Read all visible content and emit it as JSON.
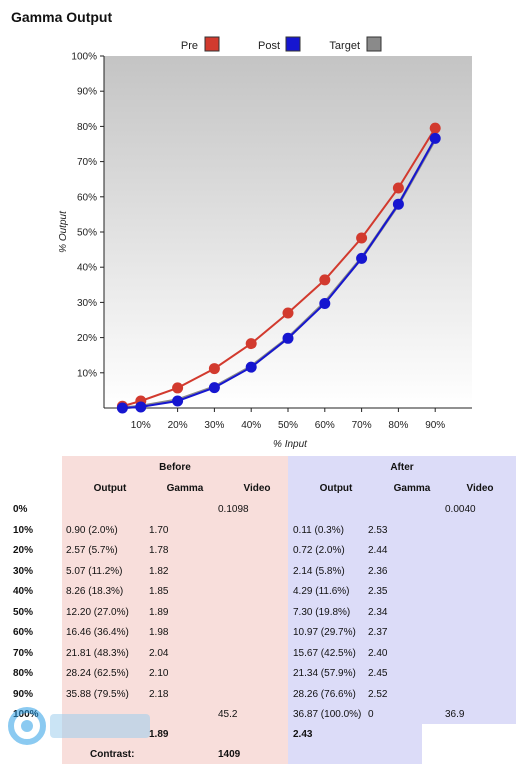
{
  "page": {
    "title": "Gamma Output"
  },
  "colors": {
    "pre": "#d23a2e",
    "post": "#1616d0",
    "target": "#8a8a8a",
    "before_bg": "#f8dedb",
    "after_bg": "#dcdcf8"
  },
  "chart_data": {
    "type": "line",
    "xlabel": "% Input",
    "ylabel": "% Output",
    "x_ticks": [
      "10%",
      "20%",
      "30%",
      "40%",
      "50%",
      "60%",
      "70%",
      "80%",
      "90%"
    ],
    "y_ticks": [
      "10%",
      "20%",
      "30%",
      "40%",
      "50%",
      "60%",
      "70%",
      "80%",
      "90%",
      "100%"
    ],
    "xlim": [
      0,
      100
    ],
    "ylim": [
      0,
      100
    ],
    "legend": [
      "Pre",
      "Post",
      "Target"
    ],
    "legend_position": "top",
    "series": [
      {
        "name": "Pre",
        "x": [
          5,
          10,
          20,
          30,
          40,
          50,
          60,
          70,
          80,
          90
        ],
        "y": [
          0.5,
          2.0,
          5.7,
          11.2,
          18.3,
          27.0,
          36.4,
          48.3,
          62.5,
          79.5
        ]
      },
      {
        "name": "Post",
        "x": [
          5,
          10,
          20,
          30,
          40,
          50,
          60,
          70,
          80,
          90
        ],
        "y": [
          0.0,
          0.3,
          2.0,
          5.8,
          11.6,
          19.8,
          29.7,
          42.5,
          57.9,
          76.6
        ]
      },
      {
        "name": "Target",
        "x": [
          5,
          10,
          20,
          30,
          40,
          50,
          60,
          70,
          80,
          90
        ],
        "y": [
          0.0,
          0.5,
          2.3,
          6.0,
          11.8,
          19.9,
          30.0,
          42.6,
          57.8,
          76.4
        ]
      }
    ]
  },
  "table": {
    "before_header": "Before",
    "after_header": "After",
    "col_headers": [
      "Output",
      "Gamma",
      "Video",
      "Output",
      "Gamma",
      "Video"
    ],
    "rows": [
      [
        "0%",
        "",
        "",
        "0.1098",
        "",
        "",
        "0.0040"
      ],
      [
        "10%",
        "0.90 (2.0%)",
        "1.70",
        "",
        "0.11 (0.3%)",
        "2.53",
        ""
      ],
      [
        "20%",
        "2.57 (5.7%)",
        "1.78",
        "",
        "0.72 (2.0%)",
        "2.44",
        ""
      ],
      [
        "30%",
        "5.07 (11.2%)",
        "1.82",
        "",
        "2.14 (5.8%)",
        "2.36",
        ""
      ],
      [
        "40%",
        "8.26 (18.3%)",
        "1.85",
        "",
        "4.29 (11.6%)",
        "2.35",
        ""
      ],
      [
        "50%",
        "12.20 (27.0%)",
        "1.89",
        "",
        "7.30 (19.8%)",
        "2.34",
        ""
      ],
      [
        "60%",
        "16.46 (36.4%)",
        "1.98",
        "",
        "10.97 (29.7%)",
        "2.37",
        ""
      ],
      [
        "70%",
        "21.81 (48.3%)",
        "2.04",
        "",
        "15.67 (42.5%)",
        "2.40",
        ""
      ],
      [
        "80%",
        "28.24 (62.5%)",
        "2.10",
        "",
        "21.34 (57.9%)",
        "2.45",
        ""
      ],
      [
        "90%",
        "35.88 (79.5%)",
        "2.18",
        "",
        "28.26 (76.6%)",
        "2.52",
        ""
      ],
      [
        "100%",
        "",
        "",
        "45.2",
        "36.87 (100.0%)",
        "0",
        "36.9"
      ]
    ],
    "avg_before": "1.89",
    "avg_after": "2.43",
    "contrast_label": "Contrast:",
    "contrast_value": "1409"
  }
}
